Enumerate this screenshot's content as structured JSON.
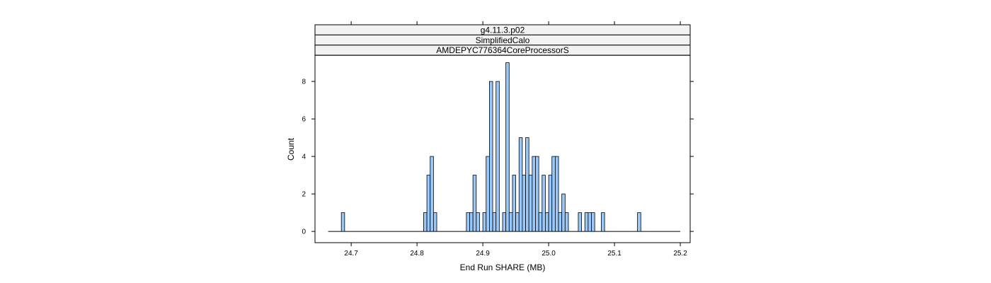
{
  "chart_data": {
    "type": "bar",
    "subtype": "histogram",
    "strips": [
      "g4.11.3.p02",
      "SimplifiedCalo",
      "AMDEPYC776364CoreProcessorS"
    ],
    "xlabel": "End Run SHARE (MB)",
    "ylabel": "Count",
    "xlim": [
      24.645,
      25.215
    ],
    "ylim": [
      -0.6,
      9.4
    ],
    "x_ticks": [
      {
        "value": 24.7,
        "label": "24.7"
      },
      {
        "value": 24.8,
        "label": "24.8"
      },
      {
        "value": 24.9,
        "label": "24.9"
      },
      {
        "value": 25.0,
        "label": "25.0"
      },
      {
        "value": 25.1,
        "label": "25.1"
      },
      {
        "value": 25.2,
        "label": "25.2"
      }
    ],
    "y_ticks": [
      {
        "value": 0,
        "label": "0"
      },
      {
        "value": 2,
        "label": "2"
      },
      {
        "value": 4,
        "label": "4"
      },
      {
        "value": 6,
        "label": "6"
      },
      {
        "value": 8,
        "label": "8"
      }
    ],
    "baseline_range": [
      24.665,
      25.2
    ],
    "bin_width": 0.005,
    "bins": [
      {
        "x": 24.685,
        "count": 1
      },
      {
        "x": 24.81,
        "count": 1
      },
      {
        "x": 24.815,
        "count": 3
      },
      {
        "x": 24.82,
        "count": 4
      },
      {
        "x": 24.825,
        "count": 1
      },
      {
        "x": 24.875,
        "count": 1
      },
      {
        "x": 24.88,
        "count": 1
      },
      {
        "x": 24.885,
        "count": 3
      },
      {
        "x": 24.89,
        "count": 1
      },
      {
        "x": 24.9,
        "count": 1
      },
      {
        "x": 24.905,
        "count": 4
      },
      {
        "x": 24.91,
        "count": 8
      },
      {
        "x": 24.915,
        "count": 1
      },
      {
        "x": 24.92,
        "count": 8
      },
      {
        "x": 24.93,
        "count": 1
      },
      {
        "x": 24.935,
        "count": 9
      },
      {
        "x": 24.94,
        "count": 1
      },
      {
        "x": 24.945,
        "count": 3
      },
      {
        "x": 24.95,
        "count": 1
      },
      {
        "x": 24.955,
        "count": 5
      },
      {
        "x": 24.96,
        "count": 3
      },
      {
        "x": 24.965,
        "count": 5
      },
      {
        "x": 24.97,
        "count": 3
      },
      {
        "x": 24.975,
        "count": 4
      },
      {
        "x": 24.98,
        "count": 4
      },
      {
        "x": 24.985,
        "count": 1
      },
      {
        "x": 24.99,
        "count": 3
      },
      {
        "x": 24.995,
        "count": 1
      },
      {
        "x": 25.0,
        "count": 3
      },
      {
        "x": 25.005,
        "count": 4
      },
      {
        "x": 25.01,
        "count": 4
      },
      {
        "x": 25.015,
        "count": 1
      },
      {
        "x": 25.02,
        "count": 2
      },
      {
        "x": 25.025,
        "count": 1
      },
      {
        "x": 25.045,
        "count": 1
      },
      {
        "x": 25.055,
        "count": 1
      },
      {
        "x": 25.06,
        "count": 1
      },
      {
        "x": 25.065,
        "count": 1
      },
      {
        "x": 25.08,
        "count": 1
      },
      {
        "x": 25.135,
        "count": 1
      }
    ],
    "colors": {
      "bar_fill": "#99c8fa",
      "bar_stroke": "#000000",
      "strip_fill": "#f2f2f2",
      "frame": "#000000"
    },
    "grid": false,
    "legend": "none"
  }
}
